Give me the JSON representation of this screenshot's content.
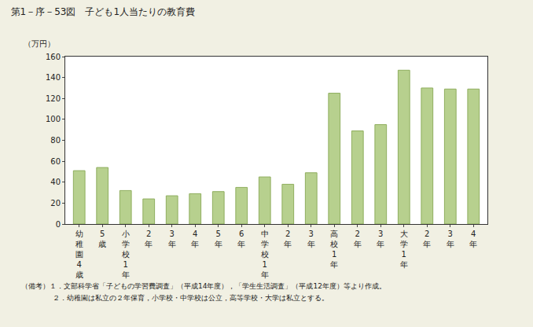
{
  "chart_data": {
    "type": "bar",
    "title": "第1－序－53図　子ども1人当たりの教育費",
    "y_label": "（万円）",
    "categories": [
      "幼稚園4歳",
      "5歳",
      "小学校1年",
      "2年",
      "3年",
      "4年",
      "5年",
      "6年",
      "中学校1年",
      "2年",
      "3年",
      "高校1年",
      "2年",
      "3年",
      "大学1年",
      "2年",
      "3年",
      "4年"
    ],
    "values": [
      51,
      54,
      32,
      24,
      27,
      29,
      31,
      35,
      45,
      38,
      49,
      125,
      89,
      95,
      147,
      130,
      129,
      129
    ],
    "color": "#b7d08e",
    "ylim": [
      0,
      160
    ],
    "yticks": [
      0,
      20,
      40,
      60,
      80,
      100,
      120,
      140,
      160
    ],
    "grid": false,
    "annotations": [
      "（備考）１．文部科学省「子どもの学習費調査」（平成14年度），「学生生活調査」（平成12年度）等より作成。",
      "２．幼稚園は私立の２年保育，小学校・中学校は公立，高等学校・大学は私立とする。"
    ]
  }
}
